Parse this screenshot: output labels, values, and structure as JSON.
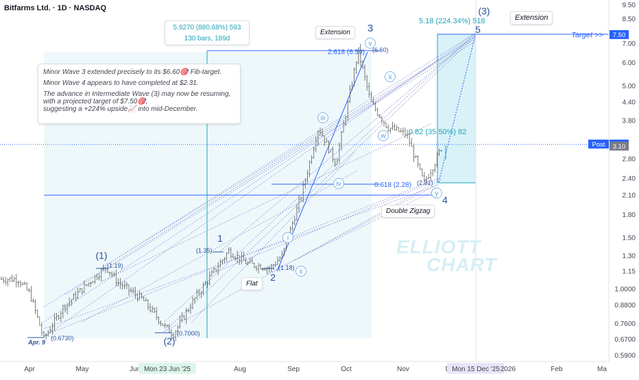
{
  "header": {
    "title": "Bitfarms Ltd. · 1D · NASDAQ"
  },
  "annotation": {
    "lines": [
      "Minor Wave 3 extended precisely to its $6.60🎯 Fib-target.",
      "Minor Wave 4 appears to have completed at $2.31.",
      "The advance in Intermediate Wave (3) may now be resuming, with a projected target of $7.50🎯,",
      "suggesting a +224% upside📈 into mid-December."
    ]
  },
  "measure_box": {
    "line1": "5.9270 (880.68%) 593",
    "line2": "130 bars, 189d"
  },
  "callouts": {
    "extension_minor": "Extension",
    "extension_intermediate": "Extension",
    "double_zigzag": "Double Zigzag",
    "flat": "Flat",
    "target": "Target >>"
  },
  "fib_labels": {
    "ext_2618": "2.618 (6.59)",
    "ret_0618": "0.618 (2.28)",
    "ext_518": "5.18 (224.34%) 518",
    "ret_082": "0.82 (35.50%) 82"
  },
  "watermark": {
    "line1": "ELLIOTT",
    "line2": "CHART"
  },
  "colors": {
    "wave_blue": "#2b4fa3",
    "fib_cyan": "#1fa3b8",
    "zone_fill": "#e6f6fa",
    "price_tag_blue": "#2962ff",
    "candle": "#5a5a5a"
  },
  "chart_data": {
    "type": "line",
    "title": "Bitfarms Ltd. · 1D · NASDAQ",
    "scale": "log",
    "ylim": [
      0.56,
      10.0
    ],
    "x_ticks": [
      "Apr",
      "May",
      "Jun",
      "Mon 23 Jun '25",
      "Aug",
      "Sep",
      "Oct",
      "Nov",
      "De",
      "Mon 15 Dec '25",
      "2026",
      "Feb",
      "Ma"
    ],
    "y_ticks": [
      "9.50",
      "8.50",
      "7.00",
      "6.00",
      "5.00",
      "4.40",
      "3.80",
      "2.80",
      "2.40",
      "2.10",
      "1.80",
      "1.50",
      "1.30",
      "1.15",
      "1.0000",
      "0.8800",
      "0.7600",
      "0.6700",
      "0.5900"
    ],
    "price_tags": [
      {
        "label": "Target",
        "value": "7.50"
      },
      {
        "label": "Post",
        "value": "3.15"
      },
      {
        "label": "",
        "value": "3.10"
      }
    ],
    "series": [
      {
        "name": "BITF close (approx.)",
        "x": [
          "Mar 25",
          "Apr 1",
          "Apr 9",
          "Apr 20",
          "May 5",
          "May 15",
          "May 22",
          "Jun 5",
          "Jun 18",
          "Jun 23",
          "Jul 5",
          "Jul 18",
          "Jul 25",
          "Aug 5",
          "Aug 18",
          "Aug 25",
          "Sep 5",
          "Sep 15",
          "Sep 25",
          "Oct 8",
          "Oct 15",
          "Oct 25",
          "Nov 5",
          "Nov 15",
          "Nov 21",
          "Nov 26"
        ],
        "values": [
          1.08,
          0.96,
          0.673,
          0.86,
          1.05,
          1.19,
          1.05,
          0.92,
          0.74,
          0.7,
          0.92,
          1.18,
          1.35,
          1.22,
          1.18,
          1.3,
          2.1,
          3.6,
          2.7,
          6.6,
          4.4,
          3.6,
          3.4,
          2.31,
          2.7,
          3.15
        ]
      }
    ],
    "waves": [
      {
        "label": "(1)",
        "x": "May 15",
        "value": 1.19
      },
      {
        "label": "(2)",
        "x": "Jun 23",
        "value": 0.7
      },
      {
        "label": "1",
        "x": "Jul 25",
        "value": 1.35
      },
      {
        "label": "2",
        "x": "Aug 18",
        "value": 1.18
      },
      {
        "label": "i",
        "x": "Aug 28",
        "value": 1.5
      },
      {
        "label": "ii",
        "x": "Sep 1",
        "value": 1.18
      },
      {
        "label": "iii",
        "x": "Sep 15",
        "value": 3.6
      },
      {
        "label": "iv",
        "x": "Sep 25",
        "value": 2.4
      },
      {
        "label": "v",
        "x": "Oct 8",
        "value": 6.6
      },
      {
        "label": "3",
        "x": "Oct 8",
        "value": 6.6
      },
      {
        "label": "x",
        "x": "Oct 20",
        "value": 5.6
      },
      {
        "label": "w",
        "x": "Oct 31",
        "value": 3.3
      },
      {
        "label": "y",
        "x": "Nov 20",
        "value": 2.31
      },
      {
        "label": "4",
        "x": "Nov 20",
        "value": 2.31
      },
      {
        "label": "5",
        "x": "Dec 15",
        "value": 7.5
      },
      {
        "label": "(3)",
        "x": "Dec 15",
        "value": 8.8
      }
    ],
    "price_labels": [
      {
        "text": "Apr. 9",
        "value": 0.673
      },
      {
        "text": "(0.6730)",
        "value": 0.673
      },
      {
        "text": "(1.19)",
        "value": 1.19
      },
      {
        "text": "(0.7000)",
        "value": 0.7
      },
      {
        "text": "(1.35)",
        "value": 1.35
      },
      {
        "text": "(1.18)",
        "value": 1.18
      },
      {
        "text": "(6.60)",
        "value": 6.6
      },
      {
        "text": "(2.31)",
        "value": 2.31
      }
    ],
    "fib_levels": [
      {
        "label": "2.618 (6.59)",
        "value": 6.59
      },
      {
        "label": "0.618 (2.28)",
        "value": 2.28
      },
      {
        "label": "5.18 (224.34%) 518",
        "value": 7.5
      },
      {
        "label": "0.82 (35.50%) 82",
        "value": 3.15
      }
    ]
  }
}
